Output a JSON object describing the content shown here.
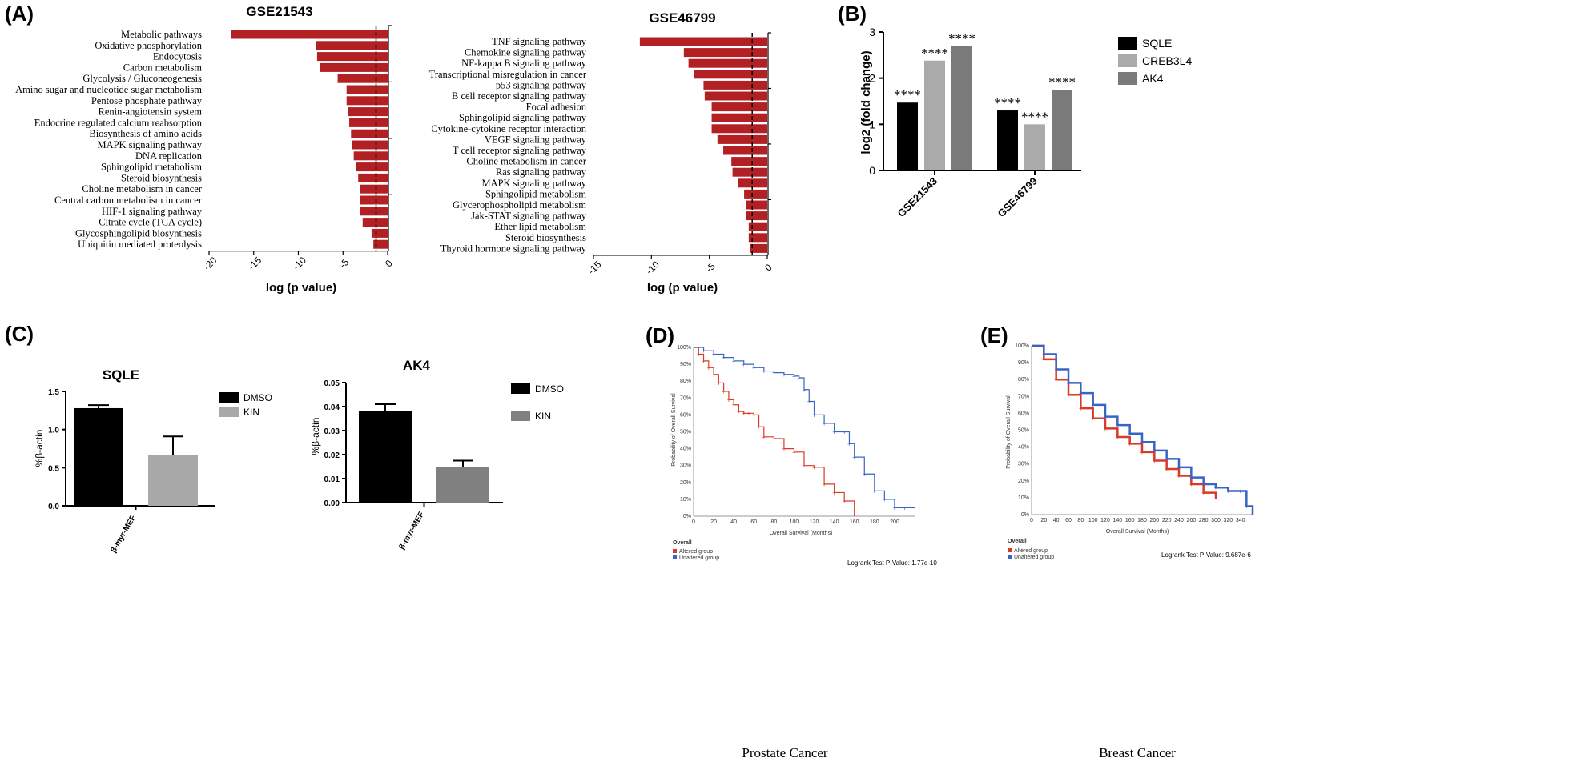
{
  "figure": {
    "captions": {
      "D": "Prostate Cancer",
      "E": "Breast Cancer"
    }
  },
  "chart_data": [
    {
      "id": "A1",
      "panel_label": "(A)",
      "type": "bar",
      "orientation": "horizontal",
      "title": "GSE21543",
      "xlabel": "log (p value)",
      "xlim": [
        -20,
        0
      ],
      "xticks": [
        -20,
        -15,
        -10,
        -5,
        0
      ],
      "threshold": -1.3,
      "color": "#b32024",
      "categories": [
        "Metabolic pathways",
        "Oxidative phosphorylation",
        "Endocytosis",
        "Carbon metabolism",
        "Glycolysis / Gluconeogenesis",
        "Amino sugar and nucleotide sugar metabolism",
        "Pentose phosphate pathway",
        "Renin-angiotensin system",
        "Endocrine regulated calcium reabsorption",
        "Biosynthesis of amino acids",
        "MAPK signaling pathway",
        "DNA replication",
        "Sphingolipid metabolism",
        "Steroid biosynthesis",
        "Choline metabolism in cancer",
        "Central carbon metabolism in cancer",
        "HIF-1 signaling pathway",
        "Citrate cycle (TCA cycle)",
        "Glycosphingolipid biosynthesis",
        "Ubiquitin mediated proteolysis"
      ],
      "values": [
        -17.5,
        -8.0,
        -7.9,
        -7.6,
        -5.6,
        -4.6,
        -4.6,
        -4.4,
        -4.3,
        -4.1,
        -4.0,
        -3.8,
        -3.5,
        -3.3,
        -3.1,
        -3.1,
        -3.1,
        -2.8,
        -1.8,
        -1.6
      ]
    },
    {
      "id": "A2",
      "type": "bar",
      "orientation": "horizontal",
      "title": "GSE46799",
      "xlabel": "log (p value)",
      "xlim": [
        -15,
        0
      ],
      "xticks": [
        -15,
        -10,
        -5,
        0
      ],
      "threshold": -1.3,
      "color": "#b32024",
      "categories": [
        "TNF signaling pathway",
        "Chemokine signaling pathway",
        "NF-kappa B signaling pathway",
        "Transcriptional misregulation in cancer",
        "p53 signaling pathway",
        "B cell receptor signaling pathway",
        "Focal adhesion",
        "Sphingolipid signaling pathway",
        "Cytokine-cytokine receptor interaction",
        "VEGF signaling pathway",
        "T cell receptor signaling pathway",
        "Choline metabolism in cancer",
        "Ras signaling pathway",
        "MAPK signaling pathway",
        "Sphingolipid metabolism",
        "Glycerophospholipid metabolism",
        "Jak-STAT signaling pathway",
        "Ether lipid metabolism",
        "Steroid biosynthesis",
        "Thyroid hormone signaling pathway"
      ],
      "values": [
        -11.0,
        -7.2,
        -6.8,
        -6.3,
        -5.5,
        -5.4,
        -4.8,
        -4.8,
        -4.8,
        -4.3,
        -3.8,
        -3.1,
        -3.0,
        -2.5,
        -2.0,
        -1.8,
        -1.8,
        -1.6,
        -1.6,
        -1.5
      ]
    },
    {
      "id": "B",
      "panel_label": "(B)",
      "type": "bar",
      "ylabel": "log2 (fold change)",
      "ylim": [
        0,
        3
      ],
      "yticks": [
        0,
        1,
        2,
        3
      ],
      "categories": [
        "GSE21543",
        "GSE46799"
      ],
      "series": [
        {
          "name": "SQLE",
          "color": "#000000",
          "values": [
            1.47,
            1.3
          ],
          "labels": [
            "****",
            "****"
          ]
        },
        {
          "name": "CREB3L4",
          "color": "#aaaaaa",
          "values": [
            2.38,
            1.0
          ],
          "labels": [
            "****",
            "****"
          ]
        },
        {
          "name": "AK4",
          "color": "#7a7a7a",
          "values": [
            2.7,
            1.75
          ],
          "labels": [
            "****",
            "****"
          ]
        }
      ]
    },
    {
      "id": "C1",
      "panel_label": "(C)",
      "type": "bar",
      "title": "SQLE",
      "ylabel": "%β-actin",
      "ylim": [
        0,
        1.5
      ],
      "yticks": [
        "0.0",
        "0.5",
        "1.0",
        "1.5"
      ],
      "category": "β-myr-MEF",
      "series": [
        {
          "name": "DMSO",
          "color": "#000000",
          "value": 1.28,
          "error": 0.04
        },
        {
          "name": "KIN",
          "color": "#a8a8a8",
          "value": 0.67,
          "error": 0.24
        }
      ]
    },
    {
      "id": "C2",
      "type": "bar",
      "title": "AK4",
      "ylabel": "%β-actin",
      "ylim": [
        0,
        0.05
      ],
      "yticks": [
        "0.00",
        "0.01",
        "0.02",
        "0.03",
        "0.04",
        "0.05"
      ],
      "category": "β-myr-MEF",
      "series": [
        {
          "name": "DMSO",
          "color": "#000000",
          "value": 0.038,
          "error": 0.003
        },
        {
          "name": "KIN",
          "color": "#808080",
          "value": 0.015,
          "error": 0.0025
        }
      ]
    },
    {
      "id": "D",
      "panel_label": "(D)",
      "type": "line",
      "subtype": "kaplan-meier",
      "xlabel": "Overall Survival (Months)",
      "ylabel": "Probability of Overall Survival",
      "xlim": [
        0,
        220
      ],
      "xticks": [
        0,
        20,
        40,
        60,
        80,
        100,
        120,
        140,
        160,
        180,
        200
      ],
      "ylim": [
        0,
        100
      ],
      "yticks": [
        "0%",
        "10%",
        "20%",
        "30%",
        "40%",
        "50%",
        "60%",
        "70%",
        "80%",
        "90%",
        "100%"
      ],
      "legend_title": "Overall",
      "pvalue_text": "Logrank Test P-Value: 1.77e-10",
      "series": [
        {
          "name": "Altered group",
          "color": "#d93a26",
          "x": [
            0,
            5,
            10,
            15,
            20,
            25,
            30,
            35,
            40,
            45,
            50,
            55,
            60,
            65,
            70,
            80,
            90,
            100,
            110,
            120,
            130,
            140,
            150,
            160
          ],
          "y": [
            100,
            96,
            92,
            88,
            84,
            79,
            74,
            69,
            66,
            62,
            61,
            61,
            60,
            53,
            47,
            46,
            40,
            38,
            30,
            29,
            19,
            14,
            9,
            0
          ]
        },
        {
          "name": "Unaltered group",
          "color": "#3864c4",
          "x": [
            0,
            10,
            20,
            30,
            40,
            50,
            60,
            70,
            80,
            90,
            100,
            105,
            110,
            115,
            120,
            130,
            140,
            150,
            155,
            160,
            170,
            180,
            190,
            200,
            210,
            220
          ],
          "y": [
            100,
            98,
            96,
            94,
            92,
            90,
            88,
            86,
            85,
            84,
            83,
            82,
            75,
            68,
            60,
            55,
            50,
            50,
            43,
            35,
            25,
            15,
            10,
            5,
            5,
            5
          ]
        }
      ]
    },
    {
      "id": "E",
      "panel_label": "(E)",
      "type": "line",
      "subtype": "kaplan-meier",
      "xlabel": "Overall Survival (Months)",
      "ylabel": "Probability of Overall Survival",
      "xlim": [
        0,
        360
      ],
      "xticks": [
        0,
        20,
        40,
        60,
        80,
        100,
        120,
        140,
        160,
        180,
        200,
        220,
        240,
        260,
        280,
        300,
        320,
        340
      ],
      "ylim": [
        0,
        100
      ],
      "yticks": [
        "0%",
        "10%",
        "20%",
        "30%",
        "40%",
        "50%",
        "60%",
        "70%",
        "80%",
        "90%",
        "100%"
      ],
      "legend_title": "Overall",
      "pvalue_text": "Logrank Test P-Value: 9.687e-6",
      "series": [
        {
          "name": "Altered group",
          "color": "#d93a26",
          "x": [
            0,
            20,
            40,
            60,
            80,
            100,
            120,
            140,
            160,
            180,
            200,
            220,
            240,
            260,
            280,
            300
          ],
          "y": [
            100,
            92,
            80,
            71,
            63,
            57,
            51,
            46,
            42,
            37,
            32,
            27,
            23,
            18,
            13,
            9
          ]
        },
        {
          "name": "Unaltered group",
          "color": "#3864c4",
          "x": [
            0,
            20,
            40,
            60,
            80,
            100,
            120,
            140,
            160,
            180,
            200,
            220,
            240,
            260,
            280,
            300,
            320,
            340,
            350,
            360
          ],
          "y": [
            100,
            95,
            86,
            78,
            72,
            65,
            58,
            53,
            48,
            43,
            38,
            33,
            28,
            22,
            18,
            16,
            14,
            14,
            5,
            0
          ]
        }
      ]
    }
  ]
}
